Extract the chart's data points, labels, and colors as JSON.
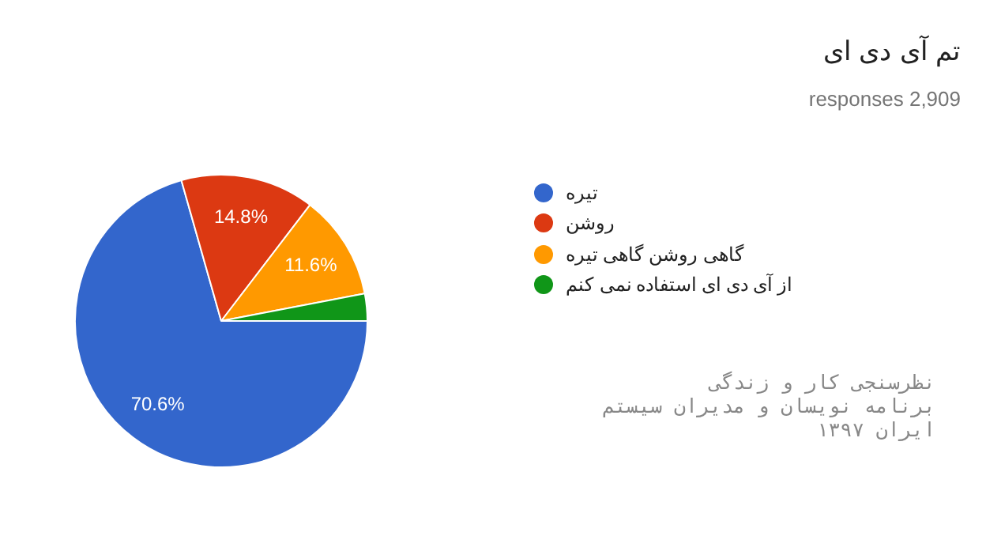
{
  "chart_data": {
    "type": "pie",
    "title": "تم آی دی ای",
    "subtitle": "responses 2,909",
    "categories": [
      "تیره",
      "روشن",
      "گاهی روشن گاهی تیره",
      "از آی دی ای استفاده نمی کنم"
    ],
    "values": [
      70.6,
      14.8,
      11.6,
      3.0
    ],
    "colors": [
      "#3366cc",
      "#dc3912",
      "#ff9900",
      "#109618"
    ],
    "value_labels": [
      "70.6%",
      "14.8%",
      "11.6%",
      null
    ],
    "legend": "right",
    "annotations": [
      "نظرسنجی کار و زندگی",
      "برنامه نویسان و مدیران سیستم",
      "ایران ۱۳۹۷"
    ]
  }
}
